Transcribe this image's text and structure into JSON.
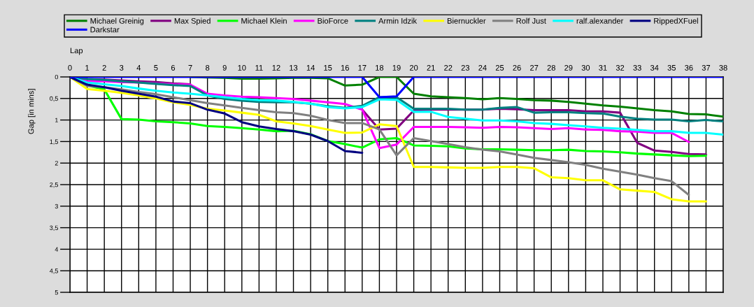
{
  "chart_data": {
    "type": "line",
    "xlabel": "Lap",
    "ylabel": "Gap [in mins]",
    "x": [
      0,
      1,
      2,
      3,
      4,
      5,
      6,
      7,
      8,
      9,
      10,
      11,
      12,
      13,
      14,
      15,
      16,
      17,
      18,
      19,
      20,
      21,
      22,
      23,
      24,
      25,
      26,
      27,
      28,
      29,
      30,
      31,
      32,
      33,
      34,
      35,
      36,
      37,
      38
    ],
    "xlim": [
      0,
      38
    ],
    "xticks": [
      0,
      1,
      2,
      3,
      4,
      5,
      6,
      7,
      8,
      9,
      10,
      11,
      12,
      13,
      14,
      15,
      16,
      17,
      18,
      19,
      20,
      21,
      22,
      23,
      24,
      25,
      26,
      27,
      28,
      29,
      30,
      31,
      32,
      33,
      34,
      35,
      36,
      37,
      38
    ],
    "ylim": [
      5,
      0
    ],
    "yticks": [
      0,
      {
        "value": 0.5,
        "label": "0,5"
      },
      1,
      {
        "value": 1.5,
        "label": "1,5"
      },
      2,
      {
        "value": 2.5,
        "label": "2,5"
      },
      3,
      {
        "value": 3.5,
        "label": "3,5"
      },
      4,
      {
        "value": 4.5,
        "label": "4,5"
      },
      5
    ],
    "grid": true,
    "legend": "top",
    "line_style": "solid",
    "series": [
      {
        "name": "Michael Greinig",
        "color": "#008000",
        "values": [
          null,
          null,
          null,
          null,
          null,
          null,
          null,
          0,
          0.01,
          0.02,
          0.04,
          0.04,
          0.03,
          0.02,
          0.02,
          0.03,
          0.2,
          0.18,
          0,
          0,
          0.39,
          0.45,
          0.47,
          0.49,
          0.52,
          0.49,
          0.51,
          0.54,
          0.55,
          0.58,
          0.62,
          0.66,
          0.69,
          0.73,
          0.77,
          0.8,
          0.86,
          0.87,
          0.92
        ]
      },
      {
        "name": "Max Spied",
        "color": "#800080",
        "values": [
          0,
          0.05,
          0.06,
          0.08,
          0.1,
          0.12,
          0.15,
          0.17,
          null,
          null,
          null,
          null,
          null,
          null,
          null,
          null,
          null,
          0.76,
          1.22,
          1.2,
          0.78,
          0.76,
          0.76,
          0.76,
          0.76,
          0.74,
          0.75,
          0.77,
          0.77,
          0.77,
          0.8,
          0.8,
          0.83,
          1.53,
          1.71,
          1.74,
          1.79,
          1.8,
          null
        ]
      },
      {
        "name": "Michael Klein",
        "color": "#00ff00",
        "values": [
          0,
          0.2,
          0.29,
          0.98,
          0.99,
          1.03,
          1.05,
          1.08,
          1.14,
          1.16,
          1.19,
          1.22,
          1.26,
          1.25,
          1.33,
          1.49,
          1.56,
          1.64,
          1.45,
          1.42,
          1.59,
          1.6,
          1.61,
          1.66,
          1.68,
          1.68,
          1.69,
          1.7,
          1.7,
          1.69,
          1.72,
          1.73,
          1.75,
          1.78,
          1.8,
          1.82,
          1.84,
          1.83,
          null
        ]
      },
      {
        "name": "BioForce",
        "color": "#ff00ff",
        "values": [
          0,
          0.1,
          0.1,
          0.12,
          0.13,
          0.15,
          0.17,
          0.18,
          0.39,
          0.43,
          0.46,
          0.47,
          0.49,
          0.51,
          0.55,
          0.59,
          0.63,
          0.76,
          1.65,
          1.57,
          1.16,
          1.16,
          1.16,
          1.17,
          1.18,
          1.16,
          1.17,
          1.19,
          1.21,
          1.19,
          1.22,
          1.23,
          1.26,
          1.27,
          1.3,
          1.3,
          1.51,
          null,
          null
        ]
      },
      {
        "name": "Armin Idzik",
        "color": "#008080",
        "values": [
          0,
          0.05,
          0.07,
          0.1,
          0.13,
          0.16,
          0.19,
          0.21,
          0.43,
          0.51,
          0.55,
          0.58,
          0.59,
          0.59,
          0.62,
          0.68,
          0.72,
          0.67,
          0.47,
          0.47,
          0.74,
          0.74,
          0.74,
          0.76,
          0.76,
          0.72,
          0.7,
          0.83,
          0.82,
          0.82,
          0.84,
          0.85,
          0.92,
          0.97,
          0.99,
          0.99,
          1.03,
          1.0,
          1.03
        ]
      },
      {
        "name": "Biernuckler",
        "color": "#ffff00",
        "values": [
          0,
          0.28,
          0.32,
          0.37,
          0.43,
          0.5,
          0.59,
          0.65,
          0.74,
          0.78,
          0.83,
          0.88,
          1.03,
          1.08,
          1.14,
          1.22,
          1.3,
          1.29,
          1.1,
          1.14,
          2.09,
          2.09,
          2.1,
          2.11,
          2.11,
          2.09,
          2.09,
          2.12,
          2.33,
          2.35,
          2.4,
          2.4,
          2.61,
          2.64,
          2.67,
          2.84,
          2.89,
          2.89,
          null
        ]
      },
      {
        "name": "Rolf Just",
        "color": "#808080",
        "values": [
          0,
          0.21,
          0.24,
          0.29,
          0.35,
          0.4,
          0.47,
          0.54,
          0.61,
          0.66,
          0.72,
          0.77,
          0.82,
          0.84,
          0.9,
          1.0,
          1.07,
          1.07,
          1.22,
          1.82,
          1.42,
          1.49,
          1.56,
          1.63,
          1.69,
          1.73,
          1.8,
          1.88,
          1.93,
          1.98,
          2.04,
          2.13,
          2.2,
          2.27,
          2.35,
          2.42,
          2.74,
          null,
          null
        ]
      },
      {
        "name": "ralf.alexander",
        "color": "#00ffff",
        "values": [
          0,
          0.13,
          0.17,
          0.21,
          0.27,
          0.32,
          0.36,
          0.39,
          0.43,
          0.47,
          0.51,
          0.54,
          0.55,
          0.58,
          0.62,
          0.7,
          0.73,
          0.7,
          0.52,
          0.53,
          0.81,
          0.81,
          0.93,
          0.97,
          1.01,
          1.01,
          1.03,
          1.07,
          1.09,
          1.12,
          1.15,
          1.18,
          1.2,
          1.23,
          1.26,
          1.26,
          1.3,
          1.3,
          1.34
        ]
      },
      {
        "name": "RippedXFuel",
        "color": "#000080",
        "values": [
          0,
          0.18,
          0.24,
          0.32,
          0.39,
          0.46,
          0.57,
          0.61,
          0.76,
          0.85,
          1.05,
          1.15,
          1.21,
          1.26,
          1.34,
          1.49,
          1.72,
          1.76,
          null,
          null,
          null,
          null,
          null,
          null,
          null,
          null,
          null,
          null,
          null,
          null,
          null,
          null,
          null,
          null,
          null,
          null,
          null,
          null,
          null
        ]
      },
      {
        "name": "Darkstar",
        "color": "#0000ff",
        "values": [
          0,
          0,
          0,
          0,
          0,
          0,
          0,
          0,
          0,
          0,
          0,
          0,
          0,
          0,
          0,
          0,
          0,
          0,
          0.47,
          0.45,
          0,
          0,
          0,
          0,
          0,
          0,
          0,
          0,
          0,
          0,
          0,
          0,
          0,
          0,
          0,
          0,
          0,
          0,
          0
        ]
      }
    ]
  }
}
